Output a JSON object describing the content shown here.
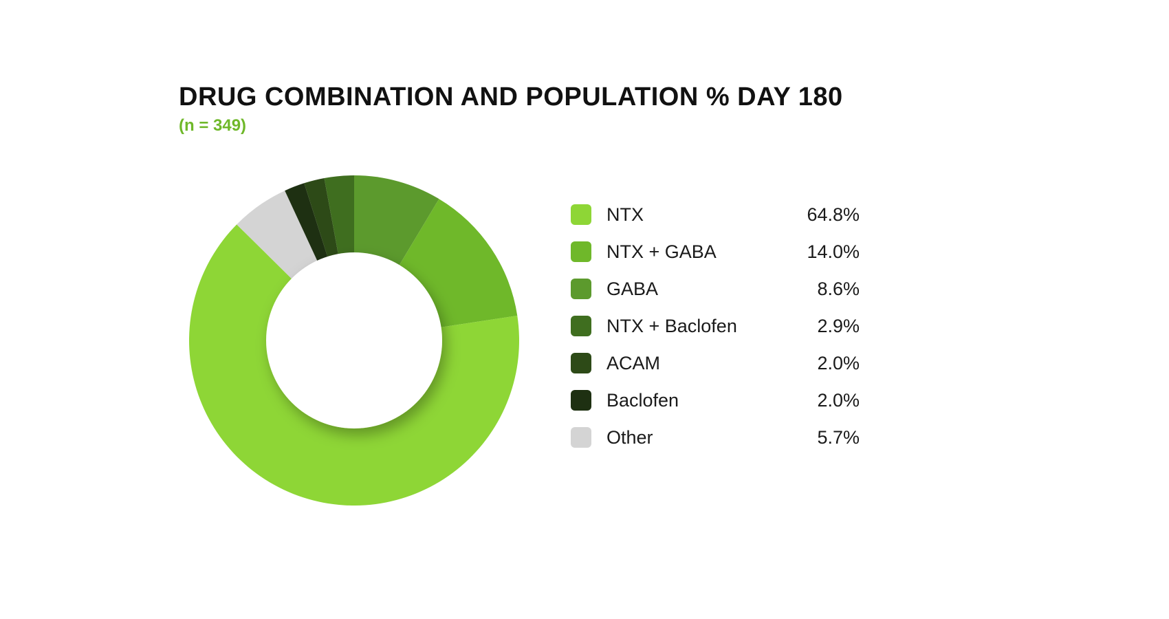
{
  "title": "DRUG COMBINATION AND POPULATION % DAY 180",
  "subtitle": "(n = 349)",
  "subtitle_color": "#6fb82a",
  "chart": {
    "type": "donut",
    "start_angle_deg": 0,
    "direction": "clockwise",
    "outer_radius": 240,
    "inner_radius": 128,
    "bg": "#ffffff",
    "shadow_color": "rgba(0,0,0,0.35)",
    "slices_order_on_ring": [
      {
        "key": "gaba"
      },
      {
        "key": "ntx_gaba"
      },
      {
        "key": "ntx"
      },
      {
        "key": "other"
      },
      {
        "key": "baclofen"
      },
      {
        "key": "acam"
      },
      {
        "key": "ntx_baclofen"
      }
    ],
    "slices": {
      "ntx": {
        "value": 64.8,
        "label": "NTX",
        "color": "#8ed636"
      },
      "ntx_gaba": {
        "value": 14.0,
        "label": "NTX + GABA",
        "color": "#6fb82a"
      },
      "gaba": {
        "value": 8.6,
        "label": "GABA",
        "color": "#5c9a2d"
      },
      "ntx_baclofen": {
        "value": 2.9,
        "label": "NTX + Baclofen",
        "color": "#3f6e1f"
      },
      "acam": {
        "value": 2.0,
        "label": "ACAM",
        "color": "#2d4a17"
      },
      "baclofen": {
        "value": 2.0,
        "label": "Baclofen",
        "color": "#1e3012"
      },
      "other": {
        "value": 5.7,
        "label": "Other",
        "color": "#d4d4d4"
      }
    },
    "legend_order": [
      "ntx",
      "ntx_gaba",
      "gaba",
      "ntx_baclofen",
      "acam",
      "baclofen",
      "other"
    ]
  },
  "typography": {
    "title_fontsize": 38,
    "subtitle_fontsize": 24,
    "legend_fontsize": 27,
    "title_color": "#111111",
    "text_color": "#1a1a1a"
  }
}
